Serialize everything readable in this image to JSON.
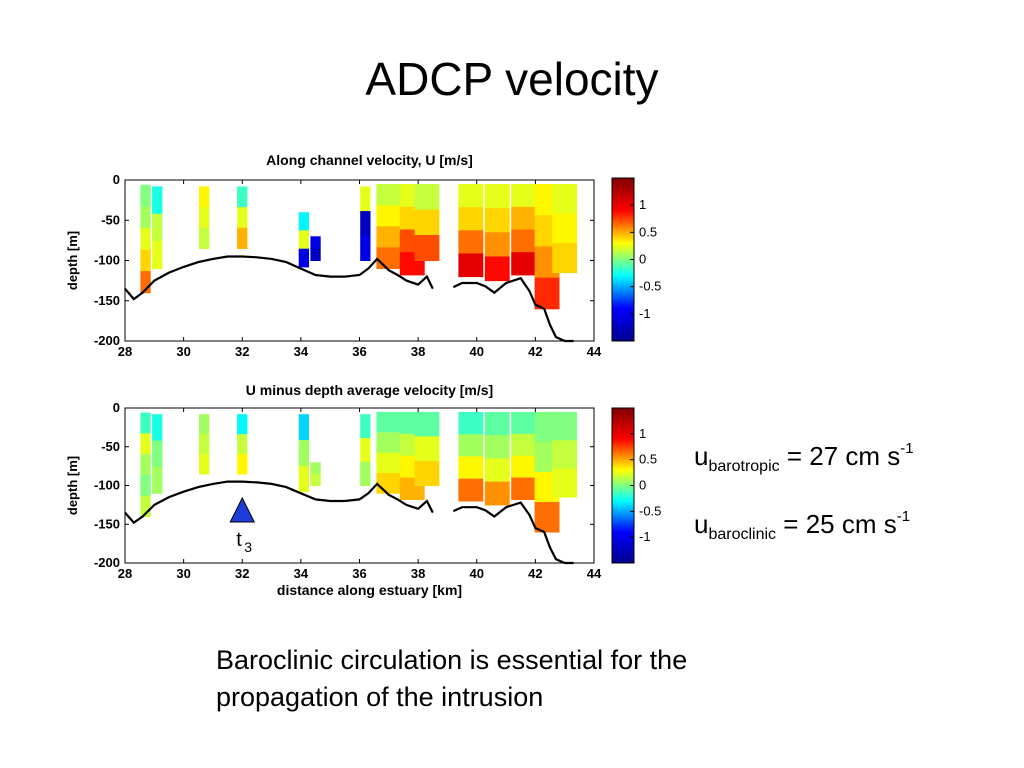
{
  "slide": {
    "title": "ADCP velocity",
    "caption_lines": [
      "Baroclinic circulation is essential for the",
      "propagation of the intrusion"
    ]
  },
  "equations": [
    {
      "symbol": "u",
      "subscript": "barotropic",
      "text": " = 27 cm s",
      "superscript": "-1"
    },
    {
      "symbol": "u",
      "subscript": "baroclinic",
      "text": " = 25 cm s",
      "superscript": "-1"
    }
  ],
  "marker": {
    "label": "t",
    "subscript": "3",
    "x": 32,
    "color": "#1f3cdb"
  },
  "chart_data": [
    {
      "type": "heatmap",
      "title": "Along channel velocity, U [m/s]",
      "xlabel": "",
      "ylabel": "depth [m]",
      "xlim": [
        28,
        44
      ],
      "ylim": [
        -200,
        0
      ],
      "x_ticks": [
        "28",
        "30",
        "32",
        "34",
        "36",
        "38",
        "40",
        "42",
        "44"
      ],
      "y_ticks": [
        "0",
        "-50",
        "-100",
        "-150",
        "-200"
      ],
      "colorbar": {
        "range": [
          -1.5,
          1.5
        ],
        "ticks": [
          "1",
          "0.5",
          "0",
          "-0.5",
          "-1"
        ],
        "colors": [
          "#00008f",
          "#0000ff",
          "#00ffff",
          "#ffff00",
          "#ff0000",
          "#800000"
        ]
      },
      "bottom_depth": {
        "x": [
          28.0,
          28.3,
          28.6,
          29.0,
          29.5,
          30.0,
          30.5,
          31.0,
          31.5,
          32.0,
          32.5,
          33.0,
          33.5,
          34.0,
          34.5,
          35.0,
          35.5,
          36.0,
          36.3,
          36.6,
          37.0,
          37.3,
          37.6,
          38.0,
          38.3,
          38.5
        ],
        "depth": [
          -135,
          -148,
          -140,
          -125,
          -115,
          -108,
          -102,
          -98,
          -95,
          -95,
          -96,
          -98,
          -102,
          -110,
          -118,
          -120,
          -120,
          -118,
          -110,
          -98,
          -112,
          -118,
          -125,
          -130,
          -120,
          -135
        ]
      },
      "bottom_depth_2": {
        "x": [
          39.2,
          39.5,
          40.0,
          40.3,
          40.6,
          41.0,
          41.5,
          41.8,
          42.0,
          42.3,
          42.5,
          42.7,
          43.0,
          43.3
        ],
        "depth": [
          -133,
          -128,
          -128,
          -132,
          -140,
          -128,
          -122,
          -138,
          -155,
          -160,
          -180,
          -195,
          -200,
          -200
        ]
      },
      "profiles": [
        {
          "x": 28.7,
          "top": -6,
          "bottom": -140,
          "v": [
            0.0,
            0.1,
            0.3,
            0.5,
            0.8
          ]
        },
        {
          "x": 29.1,
          "top": -8,
          "bottom": -110,
          "v": [
            -0.3,
            0.2,
            0.3
          ]
        },
        {
          "x": 30.7,
          "top": -8,
          "bottom": -85,
          "v": [
            0.4,
            0.3,
            0.2
          ]
        },
        {
          "x": 32.0,
          "top": -8,
          "bottom": -85,
          "v": [
            -0.2,
            0.3,
            0.6
          ]
        },
        {
          "x": 34.1,
          "top": -40,
          "bottom": -108,
          "v": [
            -0.4,
            0.3,
            -1.2
          ]
        },
        {
          "x": 34.5,
          "top": -70,
          "bottom": -100,
          "v": [
            -1.2,
            -1.3
          ]
        },
        {
          "x": 36.2,
          "top": -8,
          "bottom": -100,
          "v": [
            0.3,
            -1.3,
            -1.2
          ]
        },
        {
          "x": 37.0,
          "top": -5,
          "bottom": -110,
          "v": [
            0.2,
            0.4,
            0.6,
            0.8
          ]
        },
        {
          "x": 37.8,
          "top": -5,
          "bottom": -118,
          "v": [
            0.3,
            0.5,
            0.9,
            1.1
          ]
        },
        {
          "x": 38.3,
          "top": -5,
          "bottom": -100,
          "v": [
            0.2,
            0.5,
            0.9
          ]
        },
        {
          "x": 39.8,
          "top": -5,
          "bottom": -120,
          "v": [
            0.3,
            0.5,
            0.8,
            1.2
          ]
        },
        {
          "x": 40.7,
          "top": -5,
          "bottom": -125,
          "v": [
            0.3,
            0.5,
            0.7,
            1.1
          ]
        },
        {
          "x": 41.6,
          "top": -5,
          "bottom": -118,
          "v": [
            0.3,
            0.6,
            0.8,
            1.2
          ]
        },
        {
          "x": 42.4,
          "top": -5,
          "bottom": -160,
          "v": [
            0.4,
            0.5,
            0.7,
            1.0
          ]
        },
        {
          "x": 43.0,
          "top": -5,
          "bottom": -115,
          "v": [
            0.3,
            0.4,
            0.5
          ]
        }
      ]
    },
    {
      "type": "heatmap",
      "title": "U minus depth average velocity [m/s]",
      "xlabel": "distance along estuary [km]",
      "ylabel": "depth [m]",
      "xlim": [
        28,
        44
      ],
      "ylim": [
        -200,
        0
      ],
      "x_ticks": [
        "28",
        "30",
        "32",
        "34",
        "36",
        "38",
        "40",
        "42",
        "44"
      ],
      "y_ticks": [
        "0",
        "-50",
        "-100",
        "-150",
        "-200"
      ],
      "colorbar": {
        "range": [
          -1.5,
          1.5
        ],
        "ticks": [
          "1",
          "0.5",
          "0",
          "-0.5",
          "-1"
        ],
        "colors": [
          "#00008f",
          "#0000ff",
          "#00ffff",
          "#ffff00",
          "#ff0000",
          "#800000"
        ]
      },
      "profiles": [
        {
          "x": 28.7,
          "top": -6,
          "bottom": -140,
          "v": [
            -0.2,
            0.3,
            0.1,
            0.0,
            0.2
          ]
        },
        {
          "x": 29.1,
          "top": -8,
          "bottom": -110,
          "v": [
            -0.3,
            0.0,
            0.1
          ]
        },
        {
          "x": 30.7,
          "top": -8,
          "bottom": -85,
          "v": [
            0.1,
            0.2,
            0.3
          ]
        },
        {
          "x": 32.0,
          "top": -8,
          "bottom": -85,
          "v": [
            -0.4,
            0.2,
            0.4
          ]
        },
        {
          "x": 34.1,
          "top": -8,
          "bottom": -108,
          "v": [
            -0.5,
            0.1,
            0.3
          ]
        },
        {
          "x": 34.5,
          "top": -70,
          "bottom": -100,
          "v": [
            0.1,
            0.2
          ]
        },
        {
          "x": 36.2,
          "top": -8,
          "bottom": -100,
          "v": [
            -0.2,
            0.3,
            0.1
          ]
        },
        {
          "x": 37.0,
          "top": -5,
          "bottom": -110,
          "v": [
            -0.1,
            0.1,
            0.3,
            0.5
          ]
        },
        {
          "x": 37.8,
          "top": -5,
          "bottom": -118,
          "v": [
            -0.1,
            0.2,
            0.4,
            0.6
          ]
        },
        {
          "x": 38.3,
          "top": -5,
          "bottom": -100,
          "v": [
            -0.1,
            0.3,
            0.5
          ]
        },
        {
          "x": 39.8,
          "top": -5,
          "bottom": -120,
          "v": [
            -0.2,
            0.1,
            0.4,
            0.8
          ]
        },
        {
          "x": 40.7,
          "top": -5,
          "bottom": -125,
          "v": [
            -0.1,
            0.1,
            0.3,
            0.7
          ]
        },
        {
          "x": 41.6,
          "top": -5,
          "bottom": -118,
          "v": [
            -0.1,
            0.2,
            0.4,
            0.8
          ]
        },
        {
          "x": 42.4,
          "top": -5,
          "bottom": -160,
          "v": [
            0.0,
            0.1,
            0.4,
            0.8
          ]
        },
        {
          "x": 43.0,
          "top": -5,
          "bottom": -115,
          "v": [
            0.0,
            0.2,
            0.3
          ]
        }
      ]
    }
  ]
}
